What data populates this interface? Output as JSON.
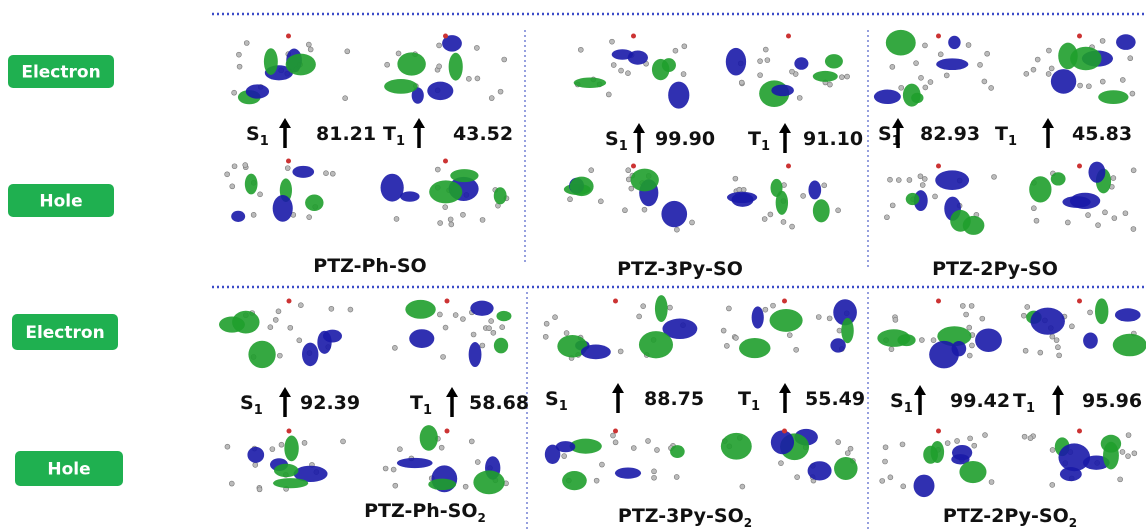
{
  "rows": [
    {
      "electron_label": "Electron",
      "hole_label": "Hole",
      "molecules": [
        {
          "name": "PTZ-Ph-SO",
          "s1": {
            "symbol": "S",
            "subscript": "1",
            "value": "81.21"
          },
          "t1": {
            "symbol": "T",
            "subscript": "1",
            "value": "43.52"
          }
        },
        {
          "name": "PTZ-3Py-SO",
          "s1": {
            "symbol": "S",
            "subscript": "1",
            "value": "99.90"
          },
          "t1": {
            "symbol": "T",
            "subscript": "1",
            "value": "91.10"
          }
        },
        {
          "name": "PTZ-2Py-SO",
          "s1": {
            "symbol": "S",
            "subscript": "1",
            "value": "82.93"
          },
          "t1": {
            "symbol": "T",
            "subscript": "1",
            "value": "45.83"
          }
        }
      ]
    },
    {
      "electron_label": "Electron",
      "hole_label": "Hole",
      "molecules": [
        {
          "name": "PTZ-Ph-SO",
          "name_subscript": "2",
          "s1": {
            "symbol": "S",
            "subscript": "1",
            "value": "92.39"
          },
          "t1": {
            "symbol": "T",
            "subscript": "1",
            "value": "58.68"
          }
        },
        {
          "name": "PTZ-3Py-SO",
          "name_subscript": "2",
          "s1": {
            "symbol": "S",
            "subscript": "1",
            "value": "88.75"
          },
          "t1": {
            "symbol": "T",
            "subscript": "1",
            "value": "55.49"
          }
        },
        {
          "name": "PTZ-2Py-SO",
          "name_subscript": "2",
          "s1": {
            "symbol": "S",
            "subscript": "1",
            "value": "99.42"
          },
          "t1": {
            "symbol": "T",
            "subscript": "1",
            "value": "95.96"
          }
        }
      ]
    }
  ]
}
